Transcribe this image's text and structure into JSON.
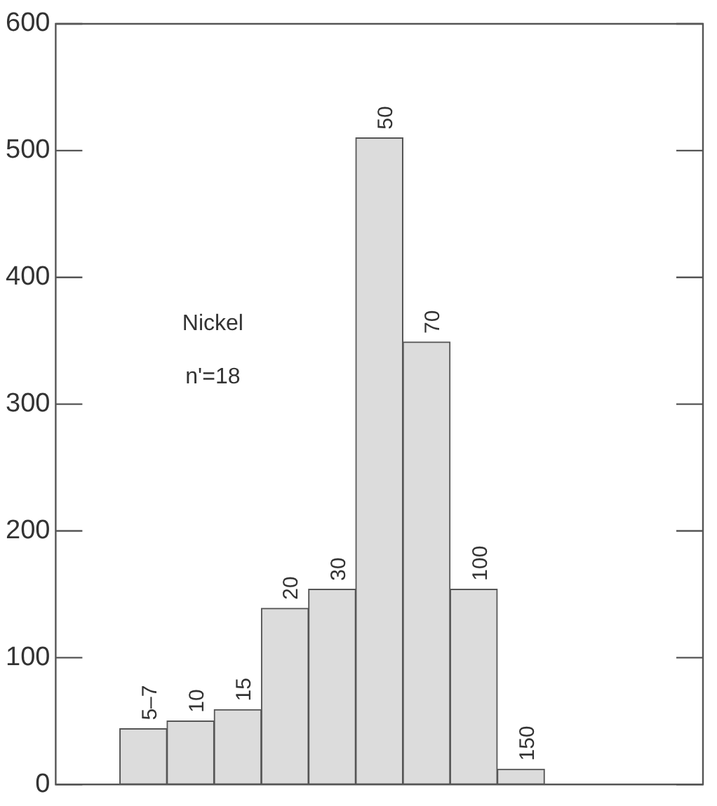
{
  "chart_data": {
    "type": "bar",
    "categories": [
      "5–7",
      "10",
      "15",
      "20",
      "30",
      "50",
      "70",
      "100",
      "150"
    ],
    "values": [
      44,
      50,
      59,
      139,
      154,
      510,
      349,
      154,
      12
    ],
    "color": "#dcdcdc",
    "ylim": [
      0,
      600
    ],
    "yticks": [
      0,
      100,
      200,
      300,
      400,
      500,
      600
    ],
    "grid": false,
    "legend": false,
    "annotations": [
      "Nickel",
      "n'=18"
    ]
  }
}
